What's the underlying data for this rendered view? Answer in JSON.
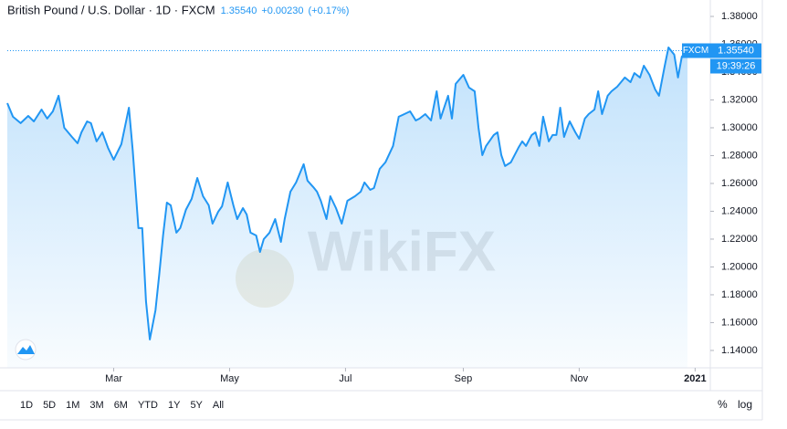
{
  "chart_data": {
    "type": "line",
    "title": "British Pound / U.S. Dollar · 1D · FXCM",
    "quote": {
      "price": "1.35540",
      "change": "+0.00230",
      "change_pct": "(+0.17%)"
    },
    "watermark": "WikiFX",
    "color": "#2196f3",
    "x": [
      4,
      7,
      11,
      15,
      18,
      22,
      25,
      28,
      31,
      34,
      38,
      41,
      43,
      46,
      48,
      51,
      54,
      57,
      60,
      64,
      68,
      70,
      73,
      75,
      77,
      79,
      82,
      84,
      86,
      88,
      90,
      93,
      95,
      98,
      101,
      104,
      107,
      110,
      112,
      115,
      117,
      120,
      123,
      125,
      128,
      130,
      132,
      135,
      137,
      139,
      142,
      145,
      148,
      150,
      153,
      156,
      160,
      162,
      165,
      167,
      169,
      172,
      174,
      177,
      180,
      183,
      187,
      190,
      192,
      195,
      197,
      200,
      203,
      207,
      210,
      213,
      216,
      219,
      221,
      224,
      227,
      230,
      232,
      236,
      238,
      240,
      244,
      247,
      250,
      252,
      254,
      256,
      260,
      262,
      264,
      266,
      269,
      273,
      275,
      277,
      280,
      282,
      284,
      286,
      289,
      291,
      293,
      295,
      297,
      300,
      303,
      305,
      308,
      310,
      313,
      315,
      317,
      320,
      322,
      325,
      327,
      329,
      332,
      334,
      337,
      339,
      342,
      345,
      347,
      350,
      352,
      355,
      357,
      359,
      362
    ],
    "values": [
      1.3177,
      1.3079,
      1.3033,
      1.3085,
      1.3046,
      1.3131,
      1.3066,
      1.3118,
      1.323,
      1.3,
      1.2934,
      1.2889,
      1.2967,
      1.3046,
      1.3033,
      1.2902,
      1.2967,
      1.2856,
      1.277,
      1.2882,
      1.3144,
      1.2836,
      1.2279,
      1.2279,
      1.1754,
      1.1479,
      1.1689,
      1.1951,
      1.2226,
      1.2462,
      1.2443,
      1.2246,
      1.2279,
      1.241,
      1.2489,
      1.2639,
      1.2508,
      1.2443,
      1.2311,
      1.2397,
      1.2436,
      1.2607,
      1.2443,
      1.2344,
      1.2423,
      1.2377,
      1.2246,
      1.2226,
      1.2108,
      1.22,
      1.2246,
      1.2344,
      1.218,
      1.2344,
      1.2541,
      1.2607,
      1.2738,
      1.262,
      1.2574,
      1.2541,
      1.2475,
      1.2344,
      1.2508,
      1.2423,
      1.2311,
      1.2475,
      1.2508,
      1.2541,
      1.2607,
      1.2554,
      1.2567,
      1.2705,
      1.2751,
      1.2869,
      1.3079,
      1.3098,
      1.3118,
      1.3052,
      1.3066,
      1.3098,
      1.3052,
      1.3262,
      1.3066,
      1.323,
      1.3066,
      1.3315,
      1.338,
      1.3289,
      1.3262,
      1.3,
      1.2803,
      1.2869,
      1.2948,
      1.2967,
      1.2803,
      1.2725,
      1.2751,
      1.2856,
      1.2902,
      1.2869,
      1.2948,
      1.2967,
      1.2869,
      1.3079,
      1.2902,
      1.2948,
      1.2948,
      1.3144,
      1.2934,
      1.3046,
      1.2967,
      1.2921,
      1.3066,
      1.3098,
      1.3131,
      1.3262,
      1.3098,
      1.323,
      1.3262,
      1.3295,
      1.3328,
      1.3361,
      1.3328,
      1.3393,
      1.3361,
      1.3446,
      1.338,
      1.3275,
      1.323,
      1.3446,
      1.3577,
      1.3525,
      1.3361,
      1.3511,
      1.3554
    ],
    "xlim": [
      4,
      374
    ],
    "xticks": [
      {
        "value": 60,
        "label": "Mar"
      },
      {
        "value": 121,
        "label": "May"
      },
      {
        "value": 182,
        "label": "Jul"
      },
      {
        "value": 244,
        "label": "Sep"
      },
      {
        "value": 305,
        "label": "Nov"
      },
      {
        "value": 366,
        "label": "2021"
      }
    ],
    "ylim": [
      1.1275,
      1.3918
    ],
    "yticks": [
      {
        "value": 1.14,
        "label": "1.14000"
      },
      {
        "value": 1.16,
        "label": "1.16000"
      },
      {
        "value": 1.18,
        "label": "1.18000"
      },
      {
        "value": 1.2,
        "label": "1.20000"
      },
      {
        "value": 1.22,
        "label": "1.22000"
      },
      {
        "value": 1.24,
        "label": "1.24000"
      },
      {
        "value": 1.26,
        "label": "1.26000"
      },
      {
        "value": 1.28,
        "label": "1.28000"
      },
      {
        "value": 1.3,
        "label": "1.30000"
      },
      {
        "value": 1.32,
        "label": "1.32000"
      },
      {
        "value": 1.34,
        "label": "1.34000"
      },
      {
        "value": 1.36,
        "label": "1.36000"
      },
      {
        "value": 1.38,
        "label": "1.38000"
      }
    ],
    "price_tag": {
      "source": "FXCM",
      "price": {
        "value": 1.3554,
        "label": "1.35540"
      },
      "time": "19:39:26"
    },
    "ranges": [
      "1D",
      "5D",
      "1M",
      "3M",
      "6M",
      "YTD",
      "1Y",
      "5Y",
      "All"
    ],
    "scale_options": [
      "%",
      "log"
    ]
  }
}
